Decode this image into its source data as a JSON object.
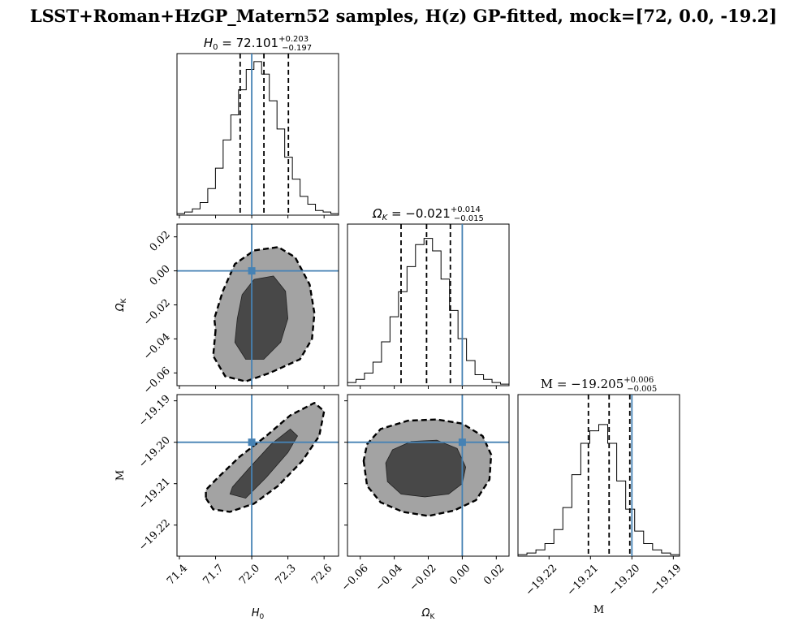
{
  "figure": {
    "title": "LSST+Roman+HzGP_Matern52 samples, H(z) GP-fitted, mock=[72, 0.0, -19.2]"
  },
  "colors": {
    "truth": "#4682b4",
    "contour_inner": "#484848",
    "contour_outer": "#a3a3a3",
    "quantile_line": "#000000",
    "histogram": "#000000"
  },
  "chart_data": [
    {
      "type": "histogram",
      "param": "H0",
      "title_name": "H₀ = 72.101",
      "title_sup": "+0.203",
      "title_sub": "−0.197",
      "xlim": [
        71.38,
        72.72
      ],
      "edges_range": [
        71.38,
        72.72
      ],
      "counts": [
        0.01,
        0.02,
        0.04,
        0.08,
        0.17,
        0.3,
        0.48,
        0.64,
        0.8,
        0.93,
        0.98,
        0.9,
        0.73,
        0.55,
        0.37,
        0.23,
        0.12,
        0.07,
        0.03,
        0.02,
        0.01
      ],
      "quantiles": [
        71.904,
        72.101,
        72.304
      ],
      "truth": 72.0
    },
    {
      "type": "histogram",
      "param": "Ok",
      "title_name": "Ω",
      "title_name_sub": "K",
      "title_value": " = −0.021",
      "title_sup": "+0.014",
      "title_sub": "−0.015",
      "xlim": [
        -0.0675,
        0.0275
      ],
      "edges_range": [
        -0.0675,
        0.0275
      ],
      "counts": [
        0.02,
        0.04,
        0.08,
        0.15,
        0.28,
        0.44,
        0.6,
        0.76,
        0.9,
        0.94,
        0.86,
        0.68,
        0.48,
        0.3,
        0.16,
        0.07,
        0.04,
        0.02,
        0.01
      ],
      "quantiles": [
        -0.036,
        -0.021,
        -0.007
      ],
      "truth": 0.0
    },
    {
      "type": "histogram",
      "param": "M",
      "title_name": "M = −19.205",
      "title_sup": "+0.006",
      "title_sub": "−0.005",
      "xlim": [
        -19.2275,
        -19.1885
      ],
      "edges_range": [
        -19.2275,
        -19.1885
      ],
      "counts": [
        0.01,
        0.02,
        0.04,
        0.08,
        0.17,
        0.31,
        0.52,
        0.72,
        0.8,
        0.84,
        0.72,
        0.48,
        0.3,
        0.16,
        0.08,
        0.04,
        0.02,
        0.01
      ],
      "quantiles": [
        -19.2105,
        -19.2055,
        -19.2005
      ],
      "truth": -19.2
    },
    {
      "type": "contour",
      "xparam": "H0",
      "yparam": "Ok",
      "xlim": [
        71.38,
        72.72
      ],
      "ylim": [
        -0.0675,
        0.0275
      ],
      "truth": [
        72.0,
        0.0
      ],
      "outer": [
        [
          71.7,
          -0.035
        ],
        [
          71.68,
          -0.05
        ],
        [
          71.78,
          -0.062
        ],
        [
          71.95,
          -0.065
        ],
        [
          72.15,
          -0.06
        ],
        [
          72.4,
          -0.052
        ],
        [
          72.5,
          -0.04
        ],
        [
          72.52,
          -0.025
        ],
        [
          72.48,
          -0.008
        ],
        [
          72.36,
          0.008
        ],
        [
          72.22,
          0.014
        ],
        [
          72.02,
          0.012
        ],
        [
          71.86,
          0.004
        ],
        [
          71.76,
          -0.012
        ],
        [
          71.69,
          -0.028
        ]
      ],
      "inner": [
        [
          71.88,
          -0.028
        ],
        [
          71.86,
          -0.042
        ],
        [
          71.95,
          -0.052
        ],
        [
          72.1,
          -0.052
        ],
        [
          72.24,
          -0.042
        ],
        [
          72.3,
          -0.028
        ],
        [
          72.28,
          -0.012
        ],
        [
          72.18,
          -0.003
        ],
        [
          72.02,
          -0.005
        ],
        [
          71.92,
          -0.014
        ]
      ]
    },
    {
      "type": "contour",
      "xparam": "H0",
      "yparam": "M",
      "xlim": [
        71.38,
        72.72
      ],
      "ylim": [
        -19.2275,
        -19.1885
      ],
      "truth": [
        72.0,
        -19.2
      ],
      "outer": [
        [
          71.62,
          -19.2135
        ],
        [
          71.68,
          -19.2162
        ],
        [
          71.82,
          -19.2168
        ],
        [
          72.02,
          -19.2148
        ],
        [
          72.22,
          -19.2105
        ],
        [
          72.42,
          -19.2045
        ],
        [
          72.56,
          -19.1985
        ],
        [
          72.6,
          -19.1925
        ],
        [
          72.52,
          -19.1905
        ],
        [
          72.32,
          -19.1935
        ],
        [
          72.12,
          -19.1985
        ],
        [
          71.9,
          -19.2035
        ],
        [
          71.72,
          -19.2085
        ],
        [
          71.62,
          -19.2115
        ]
      ],
      "inner": [
        [
          71.82,
          -19.2125
        ],
        [
          71.95,
          -19.2135
        ],
        [
          72.12,
          -19.2085
        ],
        [
          72.3,
          -19.2025
        ],
        [
          72.38,
          -19.1985
        ],
        [
          72.32,
          -19.1968
        ],
        [
          72.16,
          -19.2005
        ],
        [
          71.98,
          -19.2062
        ],
        [
          71.84,
          -19.2108
        ]
      ]
    },
    {
      "type": "contour",
      "xparam": "Ok",
      "yparam": "M",
      "xlim": [
        -0.0675,
        0.0275
      ],
      "ylim": [
        -19.2275,
        -19.1885
      ],
      "truth": [
        0.0,
        -19.2
      ],
      "outer": [
        [
          -0.058,
          -19.2045
        ],
        [
          -0.056,
          -19.2105
        ],
        [
          -0.048,
          -19.2145
        ],
        [
          -0.035,
          -19.2168
        ],
        [
          -0.02,
          -19.2178
        ],
        [
          -0.005,
          -19.2165
        ],
        [
          0.008,
          -19.214
        ],
        [
          0.016,
          -19.209
        ],
        [
          0.017,
          -19.203
        ],
        [
          0.012,
          -19.1985
        ],
        [
          0.0,
          -19.1955
        ],
        [
          -0.015,
          -19.1945
        ],
        [
          -0.032,
          -19.1948
        ],
        [
          -0.048,
          -19.1968
        ],
        [
          -0.056,
          -19.2005
        ]
      ],
      "inner": [
        [
          -0.045,
          -19.205
        ],
        [
          -0.044,
          -19.2095
        ],
        [
          -0.036,
          -19.2125
        ],
        [
          -0.022,
          -19.2132
        ],
        [
          -0.008,
          -19.2125
        ],
        [
          0.0,
          -19.21
        ],
        [
          0.002,
          -19.206
        ],
        [
          -0.003,
          -19.2015
        ],
        [
          -0.015,
          -19.1995
        ],
        [
          -0.03,
          -19.1998
        ],
        [
          -0.041,
          -19.2018
        ]
      ]
    }
  ],
  "axes": {
    "H0": {
      "label": "H",
      "label_sub": "0",
      "ticks": [
        71.4,
        71.7,
        72.0,
        72.3,
        72.6
      ],
      "tick_labels": [
        "71.4",
        "71.7",
        "72.0",
        "72.3",
        "72.6"
      ]
    },
    "Ok": {
      "label": "Ω",
      "label_sub": "K",
      "ticks": [
        -0.06,
        -0.04,
        -0.02,
        0.0,
        0.02
      ],
      "tick_labels": [
        "−0.06",
        "−0.04",
        "−0.02",
        "0.00",
        "0.02"
      ]
    },
    "M": {
      "label": "M",
      "label_sub": "",
      "ticks": [
        -19.22,
        -19.21,
        -19.2,
        -19.19
      ],
      "tick_labels": [
        "−19.22",
        "−19.21",
        "−19.20",
        "−19.19"
      ]
    }
  }
}
